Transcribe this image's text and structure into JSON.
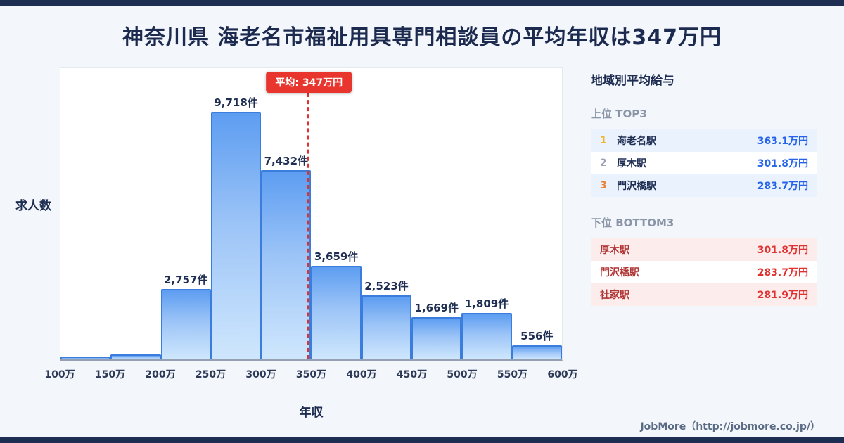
{
  "header": {
    "title": "神奈川県 海老名市福祉用具専門相談員の平均年収は347万円"
  },
  "chart_data": {
    "type": "bar",
    "title": "神奈川県 海老名市福祉用具専門相談員の平均年収は347万円",
    "xlabel": "年収",
    "ylabel": "求人数",
    "x_range": [
      100,
      600
    ],
    "x_unit": "万円",
    "bin_edges": [
      "100万",
      "150万",
      "200万",
      "250万",
      "300万",
      "350万",
      "400万",
      "450万",
      "500万",
      "550万",
      "600万"
    ],
    "values": [
      100,
      190,
      2757,
      9718,
      7432,
      3659,
      2523,
      1669,
      1809,
      556
    ],
    "bar_labels": [
      "",
      "",
      "2,757件",
      "9,718件",
      "7,432件",
      "3,659件",
      "2,523件",
      "1,669件",
      "1,809件",
      "556件"
    ],
    "mean": {
      "value": 347,
      "label": "平均: 347万円"
    },
    "grid": false,
    "legend": false
  },
  "sidebar": {
    "heading": "地域別平均給与",
    "top3": {
      "heading": "上位 TOP3",
      "rows": [
        {
          "rank": "1",
          "station": "海老名駅",
          "value": "363.1万円"
        },
        {
          "rank": "2",
          "station": "厚木駅",
          "value": "301.8万円"
        },
        {
          "rank": "3",
          "station": "門沢橋駅",
          "value": "283.7万円"
        }
      ]
    },
    "bottom3": {
      "heading": "下位 BOTTOM3",
      "rows": [
        {
          "station": "厚木駅",
          "value": "301.8万円"
        },
        {
          "station": "門沢橋駅",
          "value": "283.7万円"
        },
        {
          "station": "社家駅",
          "value": "281.9万円"
        }
      ]
    }
  },
  "footer": {
    "text": "JobMore（http://jobmore.co.jp/）"
  },
  "colors": {
    "navy": "#1e2d52",
    "page_bg": "#f3f6fa",
    "mean_line_red": "#e03131",
    "mean_badge_red": "#e8362e",
    "bar_border_blue": "#3b7ddd",
    "bar_fill_top": "#5d9df1",
    "bar_fill_bottom": "#cfe7fd",
    "top3_value_blue": "#2563eb",
    "rank1_gold": "#f0b429",
    "rank2_gray": "#97a3b4",
    "rank3_orange": "#e8833a",
    "row_blue_bg": "#eaf2fd",
    "row_pink_bg": "#fdecec",
    "bottom3_red": "#e03131"
  }
}
